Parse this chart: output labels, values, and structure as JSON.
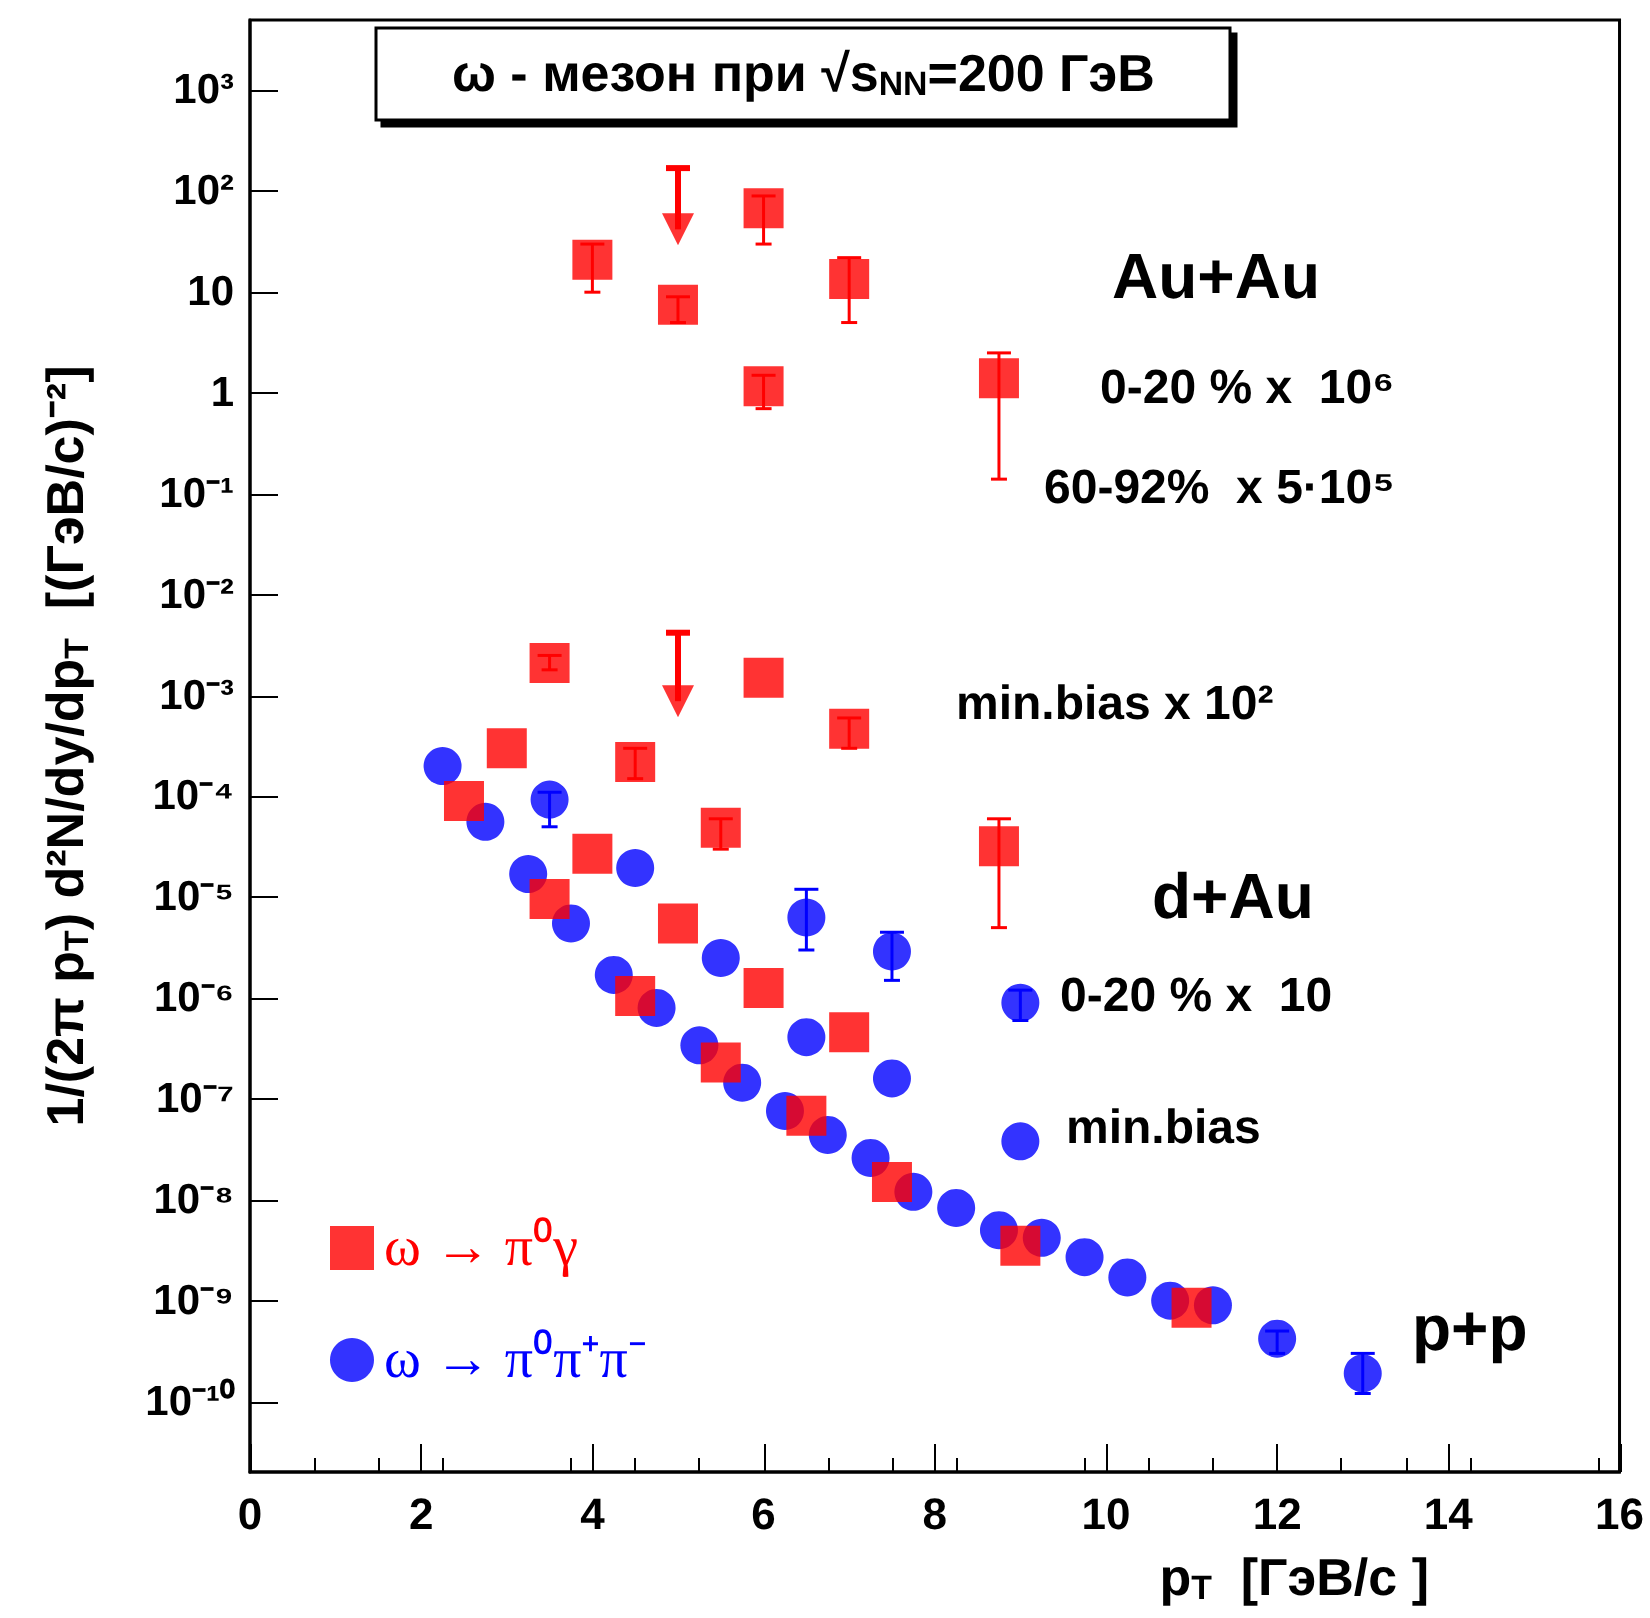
{
  "chart_data": {
    "type": "scatter",
    "title": "ω - мезон при √s$_{NN}$=200 ГэВ",
    "xlabel": "p$_{T}$  [ГэВ/c ]",
    "ylabel": "1/(2π p$_{T}$) d²N/dy/dp$_{T}$  [(ГэВ/c)⁻²]",
    "log": "y",
    "xlim": [
      0,
      16
    ],
    "xticks": [
      0,
      2,
      4,
      6,
      8,
      10,
      12,
      14,
      16
    ],
    "ylim": [
      2e-11,
      5000
    ],
    "yticks": [
      {
        "value": 1e-10,
        "label": "10⁻¹⁰"
      },
      {
        "value": 1e-09,
        "label": "10⁻⁹"
      },
      {
        "value": 1e-08,
        "label": "10⁻⁸"
      },
      {
        "value": 1e-07,
        "label": "10⁻⁷"
      },
      {
        "value": 1e-06,
        "label": "10⁻⁶"
      },
      {
        "value": 1e-05,
        "label": "10⁻⁵"
      },
      {
        "value": 0.0001,
        "label": "10⁻⁴"
      },
      {
        "value": 0.001,
        "label": "10⁻³"
      },
      {
        "value": 0.01,
        "label": "10⁻²"
      },
      {
        "value": 0.1,
        "label": "10⁻¹"
      },
      1,
      10,
      {
        "value": 100,
        "label": "10²"
      },
      {
        "value": 1000,
        "label": "10³"
      }
    ],
    "legend": "bottom left",
    "series": [
      {
        "name": "ω → π⁰γ",
        "marker": "square",
        "color": "#ff0000",
        "x": [
          4,
          5,
          6,
          6,
          7,
          8.75,
          3.5,
          6,
          7,
          3,
          4.5,
          2.5,
          5.5,
          8.75,
          4,
          3.5,
          5,
          6,
          4.5,
          7,
          5.5,
          6.5,
          7.5,
          9,
          11
        ],
        "values": [
          21,
          7.5,
          68,
          1.17,
          13.5,
          1.4,
          0.0021,
          0.0015,
          0.00047,
          0.0003,
          0.00022,
          9e-05,
          4.9e-05,
          3.2e-05,
          2.7e-05,
          9.6e-06,
          5.5e-06,
          1.26e-06,
          1.05e-06,
          4.6e-07,
          2.3e-07,
          6.8e-08,
          1.5e-08,
          3.5e-09,
          8.5e-10
        ],
        "errors": [
          [
            10,
            30
          ],
          [
            5,
            9
          ],
          [
            30,
            90
          ],
          [
            0.7,
            1.5
          ],
          [
            5,
            22
          ],
          [
            0.14,
            2.5
          ],
          [
            0.0018,
            0.0025
          ],
          null,
          [
            0.0003,
            0.0006
          ],
          null,
          [
            0.00015,
            0.0003
          ],
          null,
          [
            3e-05,
            6e-05
          ],
          [
            5e-06,
            6e-05
          ],
          null,
          null,
          null,
          null,
          null,
          null,
          null,
          null,
          null,
          null,
          null
        ]
      },
      {
        "name": "ω → π⁰π⁺π⁻",
        "marker": "circle",
        "color": "#0000ff",
        "x": [
          2.25,
          3.5,
          2.75,
          3.25,
          4.5,
          3.75,
          4.25,
          5.5,
          6.5,
          7.5,
          4.75,
          6.5,
          9,
          5.25,
          7.5,
          5.75,
          6.25,
          6.75,
          9,
          7.25,
          7.75,
          8.25,
          8.75,
          9.25,
          9.75,
          10.25,
          10.75,
          11.25,
          12,
          13
        ],
        "values": [
          0.0002,
          9.3e-05,
          5.6e-05,
          1.7e-05,
          1.95e-05,
          5.5e-06,
          1.7e-06,
          2.5e-06,
          6.3e-06,
          2.9e-06,
          8e-07,
          4.1e-07,
          9e-07,
          3.4e-07,
          1.6e-07,
          1.45e-07,
          7.6e-08,
          4.4e-08,
          3.8e-08,
          2.6e-08,
          1.2e-08,
          8.3e-09,
          5e-09,
          4.2e-09,
          2.7e-09,
          1.7e-09,
          1e-09,
          9e-10,
          4.2e-10,
          1.9e-10
        ],
        "errors": [
          null,
          [
            5e-05,
            0.00011
          ],
          null,
          null,
          null,
          null,
          null,
          null,
          [
            3e-06,
            1.2e-05
          ],
          [
            1.5e-06,
            4.5e-06
          ],
          null,
          null,
          [
            6e-07,
            1.2e-06
          ],
          null,
          null,
          null,
          null,
          null,
          null,
          null,
          null,
          null,
          null,
          null,
          null,
          null,
          null,
          null,
          [
            3e-10,
            5e-10
          ],
          [
            1.2e-10,
            3e-10
          ]
        ]
      },
      {
        "marker": "triangle",
        "color": "#ff0000",
        "x": [
          5,
          5
        ],
        "values": [
          42,
          0.00088
        ],
        "errors": [
          [
            42,
            170
          ],
          [
            0.00088,
            0.0042
          ]
        ]
      }
    ],
    "annotations": [
      "Au+Au",
      "0-20 % x  10⁶",
      "60-92%  x 5·10⁵",
      "min.bias x 10²",
      "d+Au",
      "0-20 % x  10",
      "min.bias",
      "p+p"
    ]
  }
}
